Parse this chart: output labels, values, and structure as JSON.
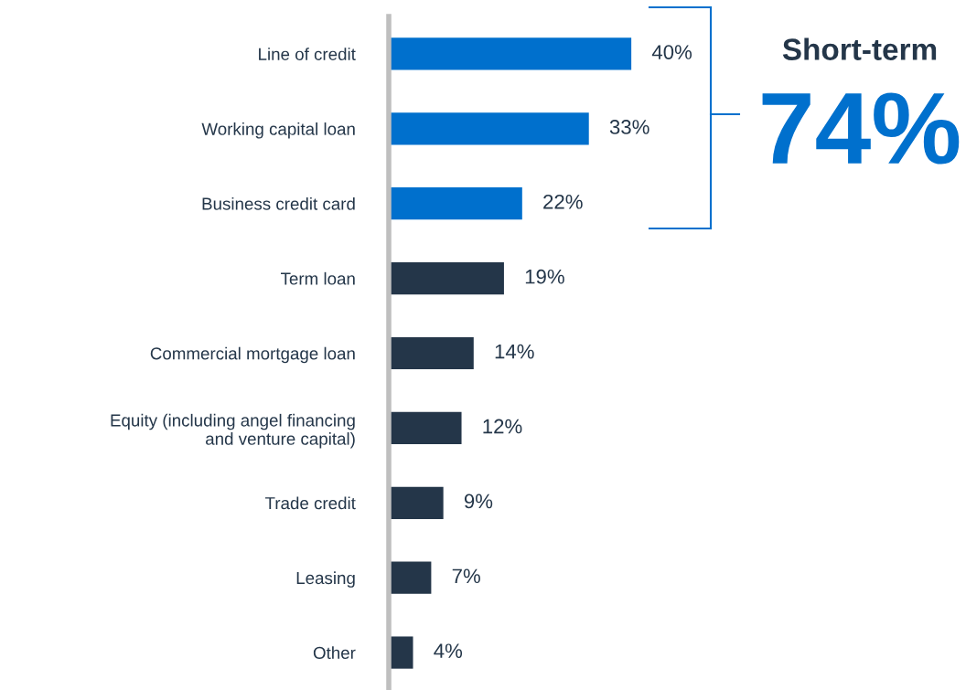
{
  "chart_data": {
    "type": "bar",
    "orientation": "horizontal",
    "categories": [
      "Line of credit",
      "Working capital loan",
      "Business credit card",
      "Term loan",
      "Commercial mortgage loan",
      "Equity (including angel financing\nand venture capital)",
      "Trade credit",
      "Leasing",
      "Other"
    ],
    "values": [
      40,
      33,
      22,
      19,
      14,
      12,
      9,
      7,
      4
    ],
    "colors": [
      "#0070cd",
      "#0070cd",
      "#0070cd",
      "#243649",
      "#243649",
      "#243649",
      "#243649",
      "#243649",
      "#243649"
    ],
    "value_labels": [
      "40%",
      "33%",
      "22%",
      "19%",
      "14%",
      "12%",
      "9%",
      "7%",
      "4%"
    ],
    "annotations": [
      "Short-term",
      "74%"
    ],
    "tick_labels": "y",
    "grid": false,
    "legend": false
  }
}
